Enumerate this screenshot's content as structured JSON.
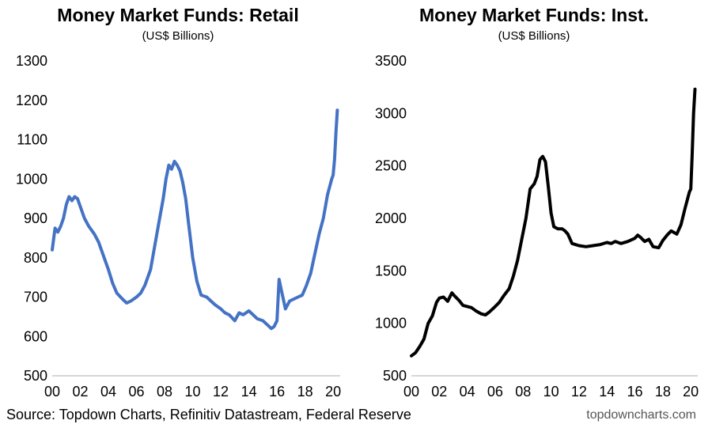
{
  "colors": {
    "retail": "#4472C4",
    "inst": "#000000"
  },
  "footer": {
    "source": "Source: Topdown Charts, Refinitiv Datastream, Federal Reserve",
    "brand": "topdowncharts.com"
  },
  "chart_data": [
    {
      "type": "line",
      "title": "Money Market Funds: Retail",
      "subtitle": "(US$ Billions)",
      "xlabel": "",
      "ylabel": "",
      "xlim": [
        2000,
        2020.5
      ],
      "ylim": [
        500,
        1300
      ],
      "yticks": [
        500,
        600,
        700,
        800,
        900,
        1000,
        1100,
        1200,
        1300
      ],
      "xtick_values": [
        2000,
        2002,
        2004,
        2006,
        2008,
        2010,
        2012,
        2014,
        2016,
        2018,
        2020
      ],
      "xtick_labels": [
        "00",
        "02",
        "04",
        "06",
        "08",
        "10",
        "12",
        "14",
        "16",
        "18",
        "20"
      ],
      "grid": false,
      "series": [
        {
          "color": "#4472C4",
          "x": [
            2000.0,
            2000.2,
            2000.4,
            2000.6,
            2000.8,
            2001.0,
            2001.2,
            2001.4,
            2001.6,
            2001.8,
            2002.0,
            2002.3,
            2002.6,
            2003.0,
            2003.3,
            2003.6,
            2004.0,
            2004.3,
            2004.6,
            2005.0,
            2005.3,
            2005.6,
            2006.0,
            2006.3,
            2006.6,
            2007.0,
            2007.3,
            2007.6,
            2007.9,
            2008.1,
            2008.3,
            2008.5,
            2008.7,
            2008.9,
            2009.1,
            2009.3,
            2009.5,
            2009.7,
            2010.0,
            2010.3,
            2010.6,
            2011.0,
            2011.3,
            2011.6,
            2012.0,
            2012.3,
            2012.6,
            2013.0,
            2013.3,
            2013.6,
            2014.0,
            2014.3,
            2014.6,
            2015.0,
            2015.3,
            2015.6,
            2015.8,
            2016.0,
            2016.15,
            2016.3,
            2016.6,
            2016.9,
            2017.2,
            2017.5,
            2017.8,
            2018.1,
            2018.4,
            2018.7,
            2019.0,
            2019.3,
            2019.6,
            2019.9,
            2020.0,
            2020.1,
            2020.2,
            2020.3
          ],
          "values": [
            820,
            875,
            865,
            880,
            900,
            935,
            955,
            945,
            955,
            950,
            930,
            900,
            880,
            860,
            840,
            810,
            770,
            735,
            710,
            695,
            685,
            690,
            700,
            710,
            730,
            770,
            830,
            890,
            950,
            1000,
            1035,
            1025,
            1045,
            1035,
            1020,
            990,
            950,
            890,
            800,
            740,
            705,
            700,
            690,
            680,
            670,
            660,
            655,
            640,
            660,
            655,
            665,
            655,
            645,
            640,
            630,
            620,
            625,
            640,
            745,
            720,
            670,
            690,
            695,
            700,
            705,
            730,
            760,
            810,
            860,
            900,
            960,
            1000,
            1010,
            1050,
            1120,
            1175
          ]
        }
      ]
    },
    {
      "type": "line",
      "title": "Money Market Funds: Inst.",
      "subtitle": "(US$ Billions)",
      "xlabel": "",
      "ylabel": "",
      "xlim": [
        2000,
        2020.5
      ],
      "ylim": [
        500,
        3500
      ],
      "yticks": [
        500,
        1000,
        1500,
        2000,
        2500,
        3000,
        3500
      ],
      "xtick_values": [
        2000,
        2002,
        2004,
        2006,
        2008,
        2010,
        2012,
        2014,
        2016,
        2018,
        2020
      ],
      "xtick_labels": [
        "00",
        "02",
        "04",
        "06",
        "08",
        "10",
        "12",
        "14",
        "16",
        "18",
        "20"
      ],
      "grid": false,
      "series": [
        {
          "color": "#000000",
          "x": [
            2000.0,
            2000.3,
            2000.6,
            2000.9,
            2001.2,
            2001.5,
            2001.8,
            2002.0,
            2002.3,
            2002.6,
            2002.9,
            2003.1,
            2003.4,
            2003.7,
            2004.0,
            2004.3,
            2004.6,
            2005.0,
            2005.3,
            2005.6,
            2006.0,
            2006.3,
            2006.6,
            2007.0,
            2007.3,
            2007.6,
            2007.9,
            2008.2,
            2008.5,
            2008.8,
            2009.0,
            2009.2,
            2009.4,
            2009.6,
            2009.8,
            2010.0,
            2010.2,
            2010.5,
            2010.8,
            2011.0,
            2011.2,
            2011.5,
            2012.0,
            2012.5,
            2013.0,
            2013.5,
            2014.0,
            2014.3,
            2014.6,
            2015.0,
            2015.5,
            2016.0,
            2016.2,
            2016.4,
            2016.7,
            2017.0,
            2017.3,
            2017.7,
            2018.0,
            2018.3,
            2018.6,
            2019.0,
            2019.3,
            2019.6,
            2019.9,
            2020.0,
            2020.1,
            2020.2,
            2020.3
          ],
          "values": [
            690,
            720,
            780,
            850,
            1000,
            1070,
            1200,
            1240,
            1250,
            1210,
            1290,
            1260,
            1220,
            1170,
            1160,
            1150,
            1120,
            1090,
            1080,
            1110,
            1160,
            1200,
            1260,
            1330,
            1450,
            1600,
            1800,
            2000,
            2280,
            2330,
            2400,
            2560,
            2590,
            2540,
            2300,
            2050,
            1920,
            1900,
            1900,
            1880,
            1850,
            1760,
            1740,
            1730,
            1740,
            1750,
            1770,
            1760,
            1780,
            1760,
            1780,
            1810,
            1840,
            1820,
            1780,
            1800,
            1730,
            1720,
            1790,
            1840,
            1880,
            1850,
            1940,
            2100,
            2250,
            2280,
            2600,
            3000,
            3230
          ]
        }
      ]
    }
  ]
}
